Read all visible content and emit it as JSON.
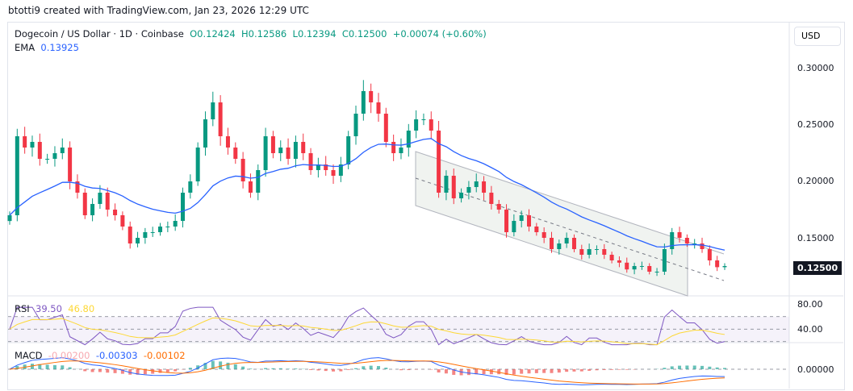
{
  "header": {
    "credit": "btotti9 created with TradingView.com, Jan 23, 2026 12:29 UTC"
  },
  "legend": {
    "symbol": "Dogecoin / US Dollar · 1D · Coinbase",
    "open": "O0.12424",
    "high": "H0.12586",
    "low": "L0.12394",
    "close": "C0.12500",
    "change": "+0.00074 (+0.60%)",
    "ema_label": "EMA",
    "ema_value": "0.13925"
  },
  "rsi": {
    "label": "RSI",
    "value": "39.50",
    "ma": "46.80",
    "ticks": [
      "80.00",
      "40.00"
    ]
  },
  "macd": {
    "label": "MACD",
    "hist": "-0.00200",
    "macd": "-0.00303",
    "signal": "-0.00102",
    "ticks": [
      "0.00000"
    ]
  },
  "scale": {
    "currency": "USD",
    "last_price": "0.12500"
  },
  "colors": {
    "up": "#089981",
    "down": "#f23645",
    "ema": "#2962ff",
    "rsi": "#7e57c2",
    "rsi_ma": "#fdd835",
    "macd": "#2962ff",
    "signal": "#ff6d00"
  },
  "chart_data": {
    "type": "candlestick",
    "ylim": [
      0.1,
      0.31
    ],
    "yticks": [
      "0.30000",
      "0.25000",
      "0.20000",
      "0.15000"
    ],
    "ytick_values": [
      0.3,
      0.25,
      0.2,
      0.15
    ],
    "closes": [
      0.17,
      0.24,
      0.23,
      0.235,
      0.22,
      0.22,
      0.225,
      0.23,
      0.2,
      0.19,
      0.17,
      0.18,
      0.19,
      0.175,
      0.17,
      0.16,
      0.145,
      0.15,
      0.155,
      0.155,
      0.16,
      0.16,
      0.165,
      0.19,
      0.2,
      0.23,
      0.255,
      0.27,
      0.24,
      0.23,
      0.22,
      0.2,
      0.19,
      0.21,
      0.24,
      0.225,
      0.23,
      0.22,
      0.235,
      0.225,
      0.21,
      0.215,
      0.21,
      0.205,
      0.215,
      0.24,
      0.26,
      0.28,
      0.27,
      0.26,
      0.235,
      0.225,
      0.23,
      0.245,
      0.255,
      0.255,
      0.245,
      0.19,
      0.205,
      0.185,
      0.19,
      0.195,
      0.2,
      0.19,
      0.18,
      0.175,
      0.155,
      0.165,
      0.17,
      0.16,
      0.155,
      0.15,
      0.14,
      0.145,
      0.15,
      0.14,
      0.135,
      0.14,
      0.14,
      0.135,
      0.13,
      0.128,
      0.122,
      0.125,
      0.125,
      0.12,
      0.12,
      0.14,
      0.155,
      0.15,
      0.145,
      0.145,
      0.14,
      0.13,
      0.124,
      0.125
    ]
  }
}
